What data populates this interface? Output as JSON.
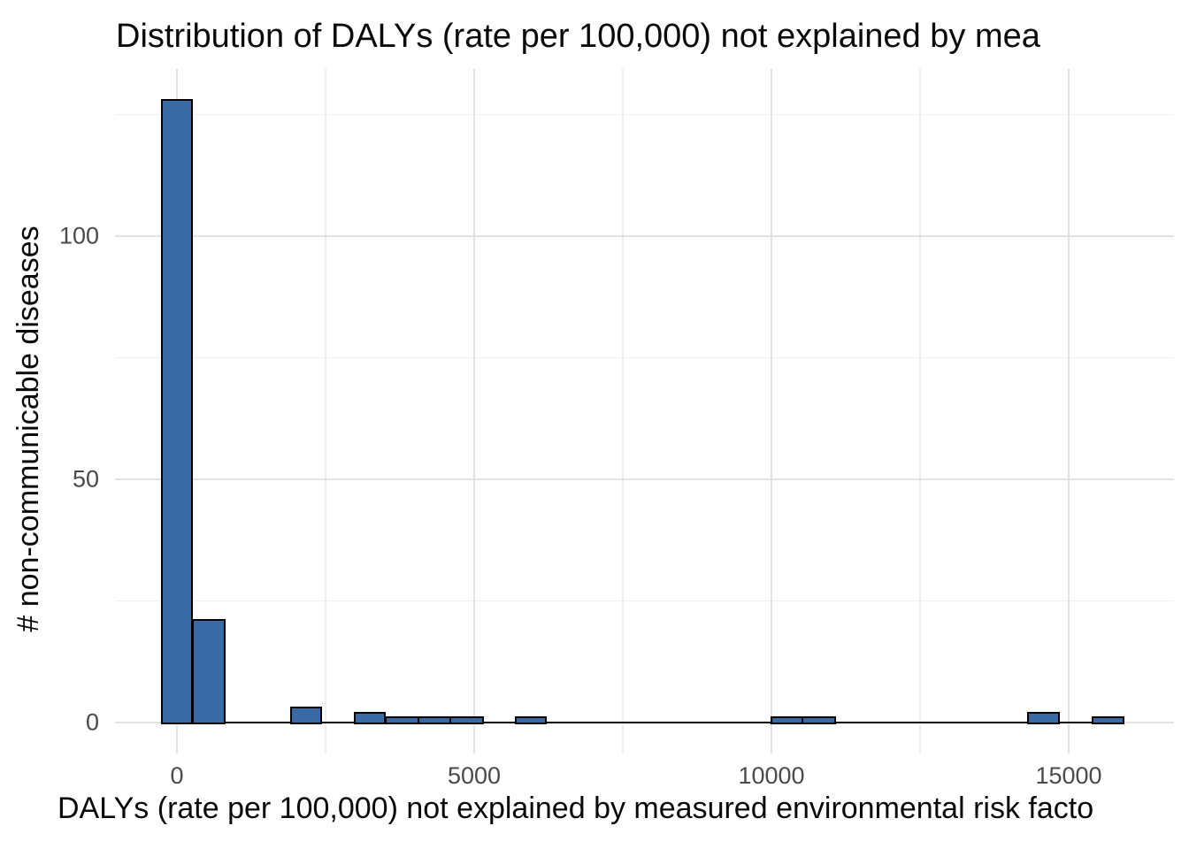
{
  "chart_data": {
    "type": "histogram",
    "title": "Distribution of DALYs (rate per 100,000) not explained by mea",
    "xlabel": "DALYs (rate per 100,000) not explained by measured environmental risk facto",
    "ylabel": "# non-communicable diseases",
    "binwidth": 545,
    "bins": [
      {
        "center": 0,
        "count": 128
      },
      {
        "center": 550,
        "count": 21
      },
      {
        "center": 2170,
        "count": 3
      },
      {
        "center": 3245,
        "count": 2
      },
      {
        "center": 3800,
        "count": 1
      },
      {
        "center": 4345,
        "count": 1
      },
      {
        "center": 4890,
        "count": 1
      },
      {
        "center": 5950,
        "count": 1
      },
      {
        "center": 10260,
        "count": 1
      },
      {
        "center": 10810,
        "count": 1
      },
      {
        "center": 14575,
        "count": 2
      },
      {
        "center": 15660,
        "count": 1
      }
    ],
    "x_ticks": [
      0,
      5000,
      10000,
      15000
    ],
    "x_minor_gridlines": [
      2500,
      7500,
      12500
    ],
    "y_ticks": [
      0,
      50,
      100
    ],
    "y_minor_gridlines": [
      25,
      75,
      125
    ],
    "xlim": [
      -1040,
      16770
    ],
    "ylim": [
      -6.4,
      134.4
    ],
    "grid": true,
    "legend_position": "none",
    "bar_fill_color": "#3a6aa5",
    "bar_stroke_color": "#000000",
    "grid_major_color": "#e2e2e2",
    "grid_minor_color": "#efefef",
    "tick_label_color": "#4a4a4a",
    "title_color": "#0a0a0a"
  }
}
